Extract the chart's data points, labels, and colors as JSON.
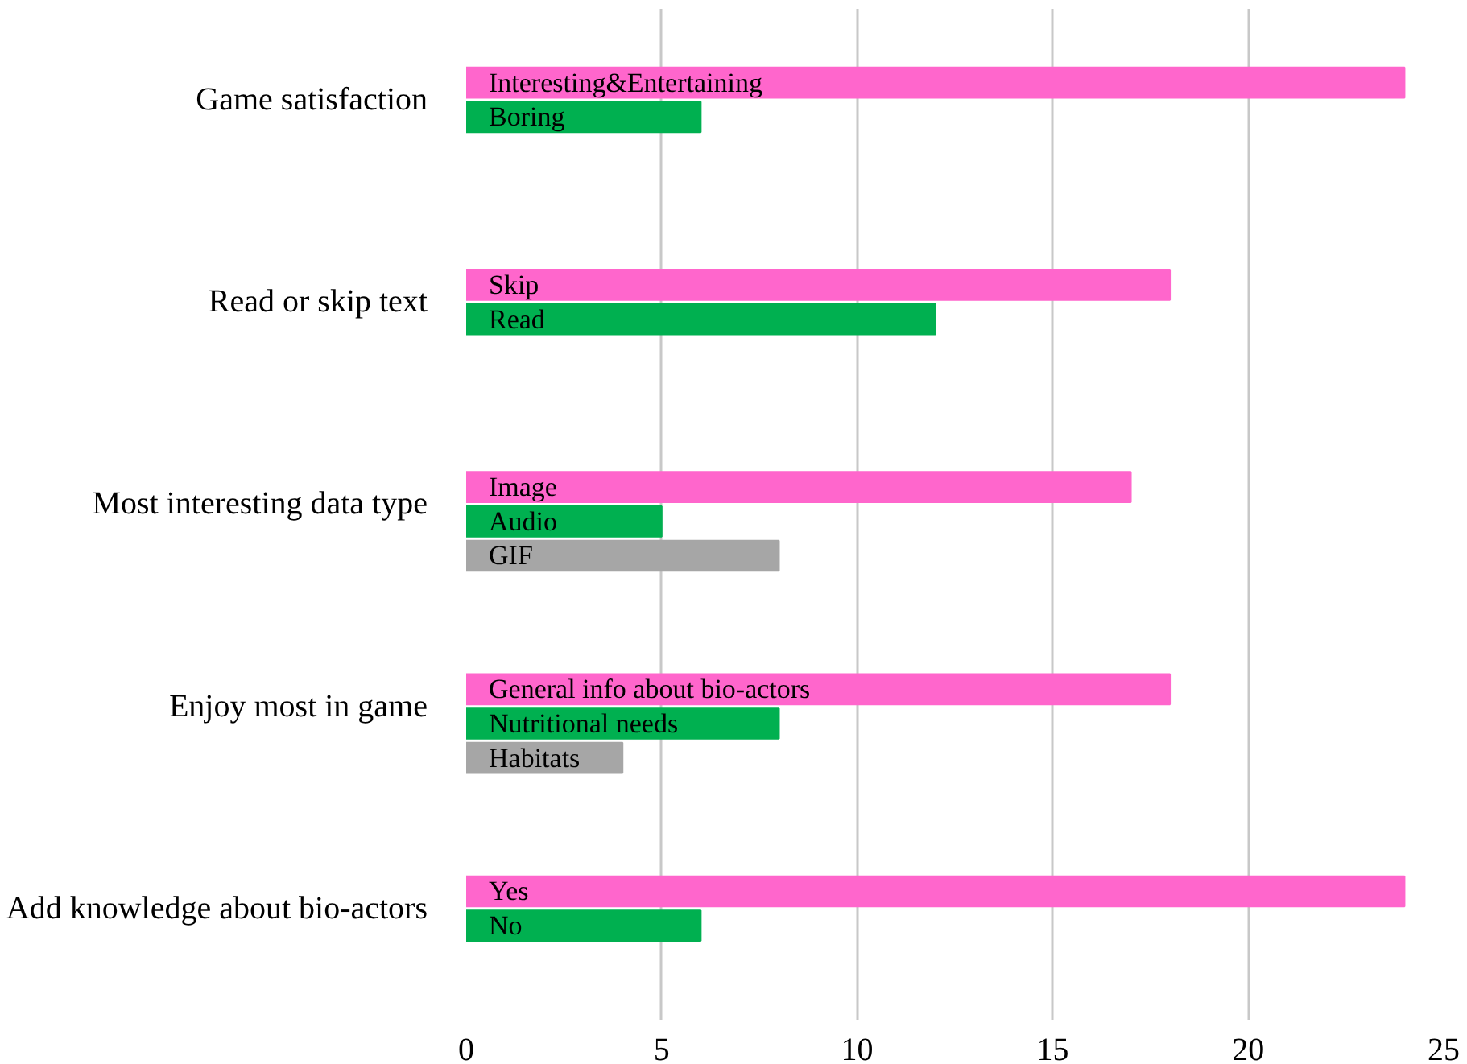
{
  "chart_data": {
    "type": "bar",
    "orientation": "horizontal",
    "categories": [
      "Game satisfaction",
      "Read or skip text",
      "Most interesting data type",
      "Enjoy most in game",
      "Add knowledge about bio-actors"
    ],
    "series": [
      {
        "color": "#ff66cc",
        "values": [
          24,
          18,
          17,
          18,
          24
        ],
        "value_labels": [
          "Interesting&Entertaining",
          "Skip",
          "Image",
          "General info about bio-actors",
          "Yes"
        ]
      },
      {
        "color": "#00b050",
        "values": [
          6,
          12,
          5,
          8,
          6
        ],
        "value_labels": [
          "Boring",
          "Read",
          "Audio",
          "Nutritional needs",
          "No"
        ]
      },
      {
        "color": "#a6a6a6",
        "values": [
          null,
          null,
          8,
          4,
          null
        ],
        "value_labels": [
          null,
          null,
          "GIF",
          "Habitats",
          null
        ]
      }
    ],
    "xlim": [
      0,
      25
    ],
    "xticks": [
      0,
      5,
      10,
      15,
      20,
      25
    ],
    "grid": "x"
  }
}
